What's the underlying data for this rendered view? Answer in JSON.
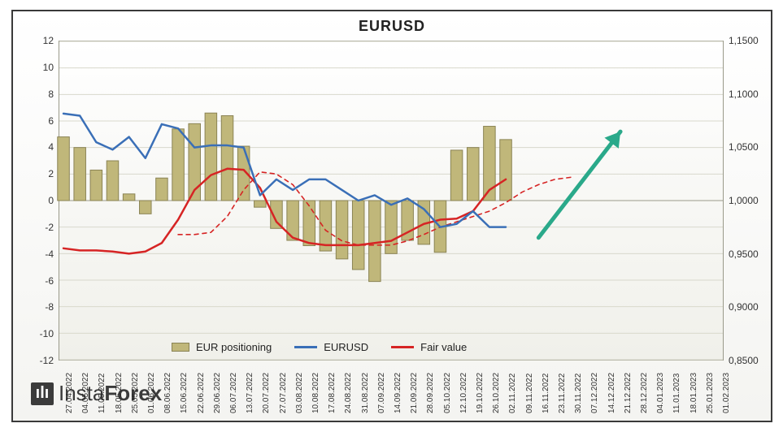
{
  "chart": {
    "title": "EURUSD",
    "title_fontsize": 18,
    "background_gradient": [
      "#ffffff",
      "#f0f0ea"
    ],
    "border_color": "#3a3a3a",
    "grid_color": "#d8d8cc",
    "axis_color": "#9a9a8a",
    "left_axis": {
      "min": -12,
      "max": 12,
      "ticks": [
        -12,
        -10,
        -8,
        -6,
        -4,
        -2,
        0,
        2,
        4,
        6,
        8,
        10,
        12
      ]
    },
    "right_axis": {
      "min": 0.85,
      "max": 1.15,
      "ticks": [
        "0,8500",
        "0,9000",
        "0,9500",
        "1,0000",
        "1,0500",
        "1,1000",
        "1,1500"
      ],
      "tick_values": [
        0.85,
        0.9,
        0.95,
        1.0,
        1.05,
        1.1,
        1.15
      ]
    },
    "x_labels": [
      "27.04.2022",
      "04.05.2022",
      "11.05.2022",
      "18.05.2022",
      "25.05.2022",
      "01.06.2022",
      "08.06.2022",
      "15.06.2022",
      "22.06.2022",
      "29.06.2022",
      "06.07.2022",
      "13.07.2022",
      "20.07.2022",
      "27.07.2022",
      "03.08.2022",
      "10.08.2022",
      "17.08.2022",
      "24.08.2022",
      "31.08.2022",
      "07.09.2022",
      "14.09.2022",
      "21.09.2022",
      "28.09.2022",
      "05.10.2022",
      "12.10.2022",
      "19.10.2022",
      "26.10.2022",
      "02.11.2022",
      "09.11.2022",
      "16.11.2022",
      "23.11.2022",
      "30.11.2022",
      "07.12.2022",
      "14.12.2022",
      "21.12.2022",
      "28.12.2022",
      "04.01.2023",
      "11.01.2023",
      "18.01.2023",
      "25.01.2023",
      "01.02.2023"
    ],
    "series": {
      "bars": {
        "name": "EUR positioning",
        "color_fill": "#c0b77a",
        "color_stroke": "#8a8354",
        "bar_width_ratio": 0.72,
        "values": [
          4.8,
          4.0,
          2.3,
          3.0,
          0.5,
          -1.0,
          1.7,
          5.4,
          5.8,
          6.6,
          6.4,
          4.1,
          -0.5,
          -2.1,
          -3.0,
          -3.4,
          -3.8,
          -4.4,
          -5.2,
          -6.1,
          -4.0,
          -3.0,
          -3.3,
          -3.9,
          3.8,
          4.0,
          5.6,
          4.6
        ]
      },
      "line_eurusd": {
        "name": "EURUSD",
        "color": "#3a6fb7",
        "width": 2.5,
        "axis": "right",
        "points": [
          [
            0,
            1.082
          ],
          [
            1,
            1.08
          ],
          [
            2,
            1.055
          ],
          [
            3,
            1.048
          ],
          [
            4,
            1.06
          ],
          [
            5,
            1.04
          ],
          [
            6,
            1.072
          ],
          [
            7,
            1.068
          ],
          [
            8,
            1.05
          ],
          [
            9,
            1.052
          ],
          [
            10,
            1.052
          ],
          [
            11,
            1.05
          ],
          [
            12,
            1.005
          ],
          [
            13,
            1.02
          ],
          [
            14,
            1.01
          ],
          [
            15,
            1.02
          ],
          [
            16,
            1.02
          ],
          [
            17,
            1.01
          ],
          [
            18,
            1.0
          ],
          [
            19,
            1.005
          ],
          [
            20,
            0.996
          ],
          [
            21,
            1.002
          ],
          [
            22,
            0.992
          ],
          [
            23,
            0.975
          ],
          [
            24,
            0.978
          ],
          [
            25,
            0.99
          ],
          [
            26,
            0.975
          ],
          [
            27,
            0.975
          ]
        ]
      },
      "line_fair_solid": {
        "name": "Fair value",
        "color": "#d62424",
        "width": 2.5,
        "axis": "right",
        "points": [
          [
            0,
            0.955
          ],
          [
            1,
            0.953
          ],
          [
            2,
            0.953
          ],
          [
            3,
            0.952
          ],
          [
            4,
            0.95
          ],
          [
            5,
            0.952
          ],
          [
            6,
            0.96
          ],
          [
            7,
            0.982
          ],
          [
            8,
            1.01
          ],
          [
            9,
            1.024
          ],
          [
            10,
            1.03
          ],
          [
            11,
            1.029
          ],
          [
            12,
            1.012
          ],
          [
            13,
            0.98
          ],
          [
            14,
            0.965
          ],
          [
            15,
            0.96
          ],
          [
            16,
            0.958
          ],
          [
            17,
            0.958
          ],
          [
            18,
            0.958
          ],
          [
            19,
            0.96
          ],
          [
            20,
            0.962
          ],
          [
            21,
            0.97
          ],
          [
            22,
            0.978
          ],
          [
            23,
            0.982
          ],
          [
            24,
            0.983
          ],
          [
            25,
            0.99
          ],
          [
            26,
            1.01
          ],
          [
            27,
            1.02
          ]
        ]
      },
      "line_fair_dashed": {
        "color": "#d62424",
        "width": 1.6,
        "dash": "5,5",
        "axis": "right",
        "points": [
          [
            7,
            0.968
          ],
          [
            8,
            0.968
          ],
          [
            9,
            0.97
          ],
          [
            10,
            0.985
          ],
          [
            11,
            1.01
          ],
          [
            12,
            1.027
          ],
          [
            13,
            1.025
          ],
          [
            14,
            1.015
          ],
          [
            15,
            0.995
          ],
          [
            16,
            0.972
          ],
          [
            17,
            0.962
          ],
          [
            18,
            0.958
          ],
          [
            19,
            0.958
          ],
          [
            20,
            0.958
          ],
          [
            21,
            0.962
          ],
          [
            22,
            0.968
          ],
          [
            23,
            0.975
          ],
          [
            24,
            0.98
          ],
          [
            25,
            0.985
          ],
          [
            26,
            0.99
          ],
          [
            27,
            0.998
          ],
          [
            28,
            1.008
          ],
          [
            29,
            1.015
          ],
          [
            30,
            1.02
          ],
          [
            31,
            1.022
          ]
        ]
      },
      "arrow": {
        "color": "#2aa98a",
        "start": [
          29,
          0.965
        ],
        "end": [
          34,
          1.065
        ],
        "width": 5
      }
    },
    "legend": {
      "items": [
        {
          "type": "bar",
          "label": "EUR positioning",
          "color": "#c0b77a",
          "stroke": "#8a8354"
        },
        {
          "type": "line",
          "label": "EURUSD",
          "color": "#3a6fb7"
        },
        {
          "type": "line",
          "label": "Fair value",
          "color": "#d62424"
        }
      ],
      "fontsize": 13
    },
    "watermark": {
      "icon_text": "ılı",
      "brand_text_light": "Insta",
      "brand_text_bold": "Forex"
    }
  }
}
